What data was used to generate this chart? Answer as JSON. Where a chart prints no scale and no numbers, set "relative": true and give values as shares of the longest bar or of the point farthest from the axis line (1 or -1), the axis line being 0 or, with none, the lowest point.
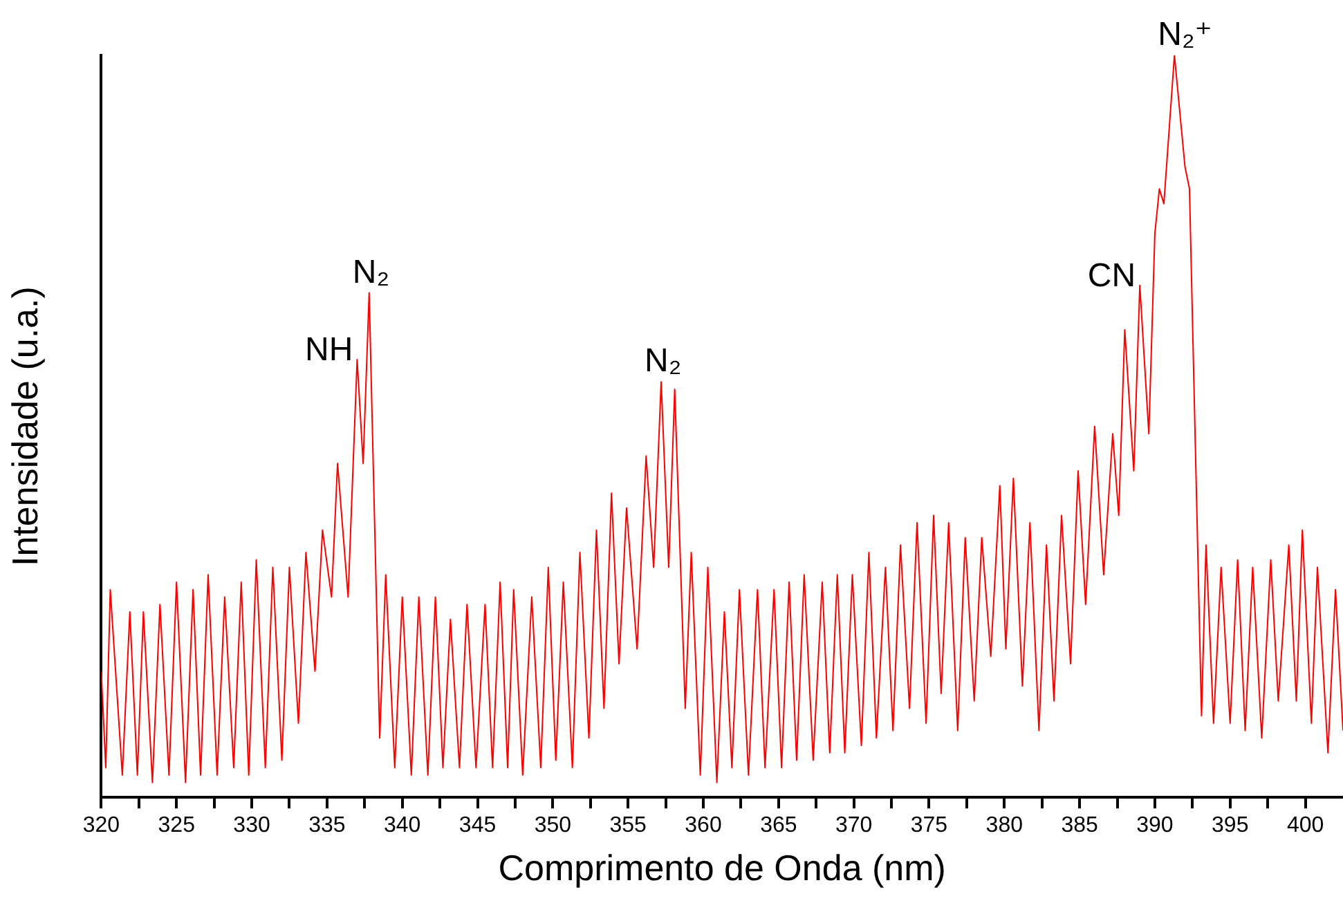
{
  "chart_data": {
    "type": "line",
    "xlabel": "Comprimento de Onda (nm)",
    "ylabel": "Intensidade (u.a.)",
    "relative": true,
    "xlim": [
      320,
      402.5
    ],
    "xticks": [
      320,
      {
        "value": 322.5,
        "label": null
      },
      325,
      {
        "value": 327.5,
        "label": null
      },
      330,
      {
        "value": 332.5,
        "label": null
      },
      335,
      {
        "value": 337.5,
        "label": null
      },
      340,
      {
        "value": 342.5,
        "label": null
      },
      345,
      {
        "value": 347.5,
        "label": null
      },
      350,
      {
        "value": 352.5,
        "label": null
      },
      355,
      {
        "value": 357.5,
        "label": null
      },
      360,
      {
        "value": 362.5,
        "label": null
      },
      365,
      {
        "value": 367.5,
        "label": null
      },
      370,
      {
        "value": 372.5,
        "label": null
      },
      375,
      {
        "value": 377.5,
        "label": null
      },
      380,
      {
        "value": 382.5,
        "label": null
      },
      385,
      {
        "value": 387.5,
        "label": null
      },
      390,
      {
        "value": 392.5,
        "label": null
      },
      395,
      {
        "value": 397.5,
        "label": null
      },
      400
    ],
    "grid": false,
    "legend": false,
    "marker": "none",
    "line_style": "solid",
    "series": [
      {
        "color": "#ff0000",
        "x": [
          320.0,
          320.3,
          320.6,
          321.4,
          321.9,
          322.4,
          322.8,
          323.4,
          323.9,
          324.5,
          325.0,
          325.6,
          326.1,
          326.6,
          327.1,
          327.7,
          328.2,
          328.8,
          329.3,
          329.8,
          330.3,
          330.9,
          331.4,
          332.0,
          332.5,
          333.1,
          333.6,
          334.2,
          334.7,
          335.3,
          335.7,
          336.4,
          337.0,
          337.4,
          337.8,
          338.5,
          338.9,
          339.5,
          340.0,
          340.6,
          341.1,
          341.7,
          342.2,
          342.7,
          343.2,
          343.8,
          344.3,
          344.9,
          345.5,
          346.0,
          346.5,
          347.0,
          347.4,
          348.0,
          348.6,
          349.2,
          349.7,
          350.2,
          350.7,
          351.3,
          351.8,
          352.4,
          352.9,
          353.4,
          353.9,
          354.4,
          354.9,
          355.6,
          356.2,
          356.7,
          357.2,
          357.7,
          358.1,
          358.8,
          359.2,
          359.8,
          360.3,
          360.9,
          361.4,
          361.9,
          362.4,
          363.0,
          363.6,
          364.1,
          364.7,
          365.2,
          365.7,
          366.2,
          366.7,
          367.3,
          367.9,
          368.4,
          368.9,
          369.4,
          369.9,
          370.5,
          371.0,
          371.5,
          372.1,
          372.6,
          373.1,
          373.7,
          374.2,
          374.8,
          375.3,
          375.8,
          376.3,
          376.9,
          377.4,
          378.0,
          378.5,
          379.1,
          379.7,
          380.1,
          380.6,
          381.2,
          381.7,
          382.3,
          382.8,
          383.3,
          383.8,
          384.4,
          384.9,
          385.4,
          386.0,
          386.6,
          387.2,
          387.6,
          388.0,
          388.6,
          389.0,
          389.6,
          390.0,
          390.3,
          390.6,
          391.3,
          392.0,
          392.3,
          393.1,
          393.4,
          393.9,
          394.4,
          395.0,
          395.5,
          396.0,
          396.5,
          397.1,
          397.7,
          398.2,
          398.9,
          399.4,
          399.8,
          400.4,
          400.8,
          401.5,
          402.0,
          402.5
        ],
        "values": [
          0.17,
          0.04,
          0.28,
          0.03,
          0.25,
          0.03,
          0.25,
          0.02,
          0.26,
          0.03,
          0.29,
          0.02,
          0.28,
          0.03,
          0.3,
          0.03,
          0.27,
          0.04,
          0.29,
          0.03,
          0.32,
          0.04,
          0.31,
          0.05,
          0.31,
          0.1,
          0.33,
          0.17,
          0.36,
          0.27,
          0.45,
          0.27,
          0.59,
          0.45,
          0.68,
          0.08,
          0.3,
          0.04,
          0.27,
          0.03,
          0.27,
          0.03,
          0.27,
          0.04,
          0.24,
          0.04,
          0.26,
          0.04,
          0.26,
          0.04,
          0.29,
          0.04,
          0.28,
          0.03,
          0.27,
          0.04,
          0.31,
          0.05,
          0.29,
          0.04,
          0.33,
          0.08,
          0.36,
          0.12,
          0.41,
          0.18,
          0.39,
          0.2,
          0.46,
          0.31,
          0.56,
          0.31,
          0.55,
          0.12,
          0.33,
          0.03,
          0.31,
          0.02,
          0.25,
          0.04,
          0.28,
          0.03,
          0.28,
          0.04,
          0.28,
          0.04,
          0.29,
          0.05,
          0.3,
          0.05,
          0.29,
          0.06,
          0.3,
          0.06,
          0.3,
          0.07,
          0.33,
          0.08,
          0.31,
          0.09,
          0.34,
          0.12,
          0.37,
          0.1,
          0.38,
          0.14,
          0.37,
          0.09,
          0.35,
          0.13,
          0.35,
          0.19,
          0.42,
          0.2,
          0.43,
          0.15,
          0.37,
          0.09,
          0.34,
          0.13,
          0.38,
          0.18,
          0.44,
          0.26,
          0.5,
          0.3,
          0.49,
          0.38,
          0.63,
          0.44,
          0.69,
          0.49,
          0.76,
          0.82,
          0.8,
          1,
          0.85,
          0.82,
          0.11,
          0.34,
          0.1,
          0.31,
          0.1,
          0.32,
          0.09,
          0.31,
          0.08,
          0.32,
          0.13,
          0.34,
          0.13,
          0.36,
          0.1,
          0.31,
          0.06,
          0.28,
          0.09
        ]
      }
    ],
    "annotations": [
      {
        "text": "NH",
        "x": 337.0,
        "y": 0.59
      },
      {
        "text": "N₂",
        "x": 337.8,
        "y": 0.68
      },
      {
        "text": "N₂",
        "x": 357.2,
        "y": 0.56
      },
      {
        "text": "CN",
        "x": 389.0,
        "y": 0.69
      },
      {
        "text": "N₂⁺",
        "x": 391.3,
        "y": 1
      }
    ]
  }
}
